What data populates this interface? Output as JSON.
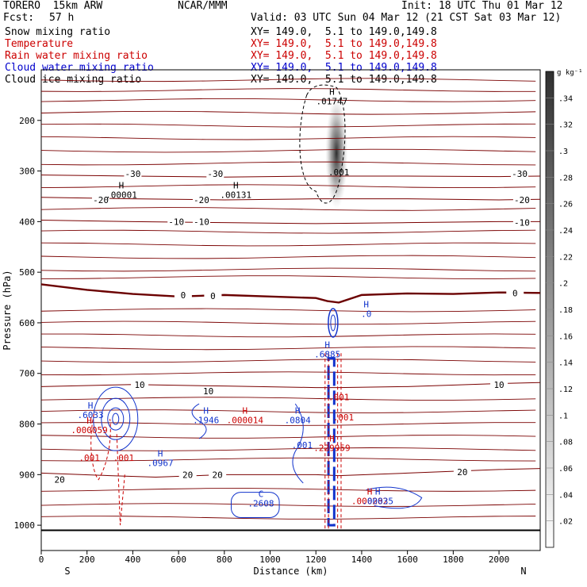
{
  "header": {
    "model": "TORERO  15km ARW",
    "org": "NCAR/MMM",
    "init": "Init: 18 UTC Thu 01 Mar 12",
    "fcst_label": "Fcst:",
    "fcst_value": "57 h",
    "valid": "Valid: 03 UTC Sun 04 Mar 12 (21 CST Sat 03 Mar 12)",
    "fields": [
      {
        "name": "Snow mixing ratio",
        "xy": "XY= 149.0,  5.1 to 149.0,149.8",
        "color": "#000000"
      },
      {
        "name": "Temperature",
        "xy": "XY= 149.0,  5.1 to 149.0,149.8",
        "color": "#cc0000"
      },
      {
        "name": "Rain water mixing ratio",
        "xy": "XY= 149.0,  5.1 to 149.0,149.8",
        "color": "#cc0000"
      },
      {
        "name": "Cloud water mixing ratio",
        "xy": "XY= 149.0,  5.1 to 149.0,149.8",
        "color": "#0000cc"
      },
      {
        "name": "Cloud ice mixing ratio",
        "xy": "XY= 149.0,  5.1 to 149.0,149.8",
        "color": "#000000"
      }
    ]
  },
  "chart_data": {
    "type": "contour cross-section",
    "xlabel": "Distance (km)",
    "ylabel": "Pressure (hPa)",
    "xlim": [
      0,
      2180
    ],
    "ylim": [
      1050,
      100
    ],
    "x_ticks": [
      0,
      200,
      400,
      600,
      800,
      1000,
      1200,
      1400,
      1600,
      1800,
      2000
    ],
    "y_ticks": [
      200,
      300,
      400,
      500,
      600,
      700,
      800,
      900,
      1000
    ],
    "x_end_labels": {
      "left": "S",
      "right": "N"
    },
    "colorbar": {
      "unit": "g kg⁻¹",
      "ticks": [
        ".02",
        ".04",
        ".06",
        ".08",
        ".1",
        ".12",
        ".14",
        ".16",
        ".18",
        ".2",
        ".22",
        ".24",
        ".26",
        ".28",
        ".3",
        ".32",
        ".34"
      ]
    },
    "temperature_isotherms": [
      {
        "value": 0,
        "x": [
          0,
          200,
          400,
          600,
          800,
          1000,
          1200,
          1250,
          1300,
          1400,
          1600,
          1800,
          2000,
          2180
        ],
        "p": [
          524,
          535,
          543,
          548,
          545,
          548,
          551,
          557,
          560,
          545,
          542,
          543,
          540,
          541
        ],
        "bold": true
      },
      {
        "value": 10,
        "x": [
          0,
          400,
          800,
          1200,
          1300,
          1600,
          2000,
          2180
        ],
        "p": [
          726,
          722,
          725,
          728,
          728,
          726,
          720,
          718
        ],
        "bold": false
      },
      {
        "value": 20,
        "x": [
          0,
          300,
          500,
          800,
          1000,
          1200,
          1300,
          1600,
          2000,
          2180
        ],
        "p": [
          897,
          902,
          905,
          900,
          900,
          900,
          902,
          897,
          890,
          888
        ],
        "bold": false
      },
      {
        "value": -10,
        "x": [
          0,
          400,
          800,
          1200,
          1600,
          2000,
          2180
        ],
        "p": [
          397,
          400,
          402,
          404,
          402,
          400,
          400
        ],
        "bold": false
      },
      {
        "value": -20,
        "x": [
          0,
          400,
          800,
          1200,
          1600,
          2000,
          2180
        ],
        "p": [
          352,
          355,
          357,
          355,
          355,
          357,
          356
        ],
        "bold": false
      },
      {
        "value": -30,
        "x": [
          0,
          400,
          800,
          1200,
          1600,
          2000,
          2180
        ],
        "p": [
          308,
          310,
          312,
          310,
          310,
          311,
          310
        ],
        "bold": false
      }
    ],
    "temperature_labels": [
      {
        "text": "-30",
        "x": 400,
        "p": 305
      },
      {
        "text": "-30",
        "x": 760,
        "p": 305
      },
      {
        "text": "-30",
        "x": 2090,
        "p": 305
      },
      {
        "text": "-20",
        "x": 260,
        "p": 357
      },
      {
        "text": "-20",
        "x": 700,
        "p": 357
      },
      {
        "text": "-20",
        "x": 2100,
        "p": 357
      },
      {
        "text": "-10",
        "x": 590,
        "p": 400
      },
      {
        "text": "-10",
        "x": 700,
        "p": 400
      },
      {
        "text": "-10",
        "x": 2100,
        "p": 402
      },
      {
        "text": "0",
        "x": 620,
        "p": 545
      },
      {
        "text": "0",
        "x": 750,
        "p": 547
      },
      {
        "text": "0",
        "x": 2070,
        "p": 541
      },
      {
        "text": "10",
        "x": 430,
        "p": 722
      },
      {
        "text": "10",
        "x": 730,
        "p": 735
      },
      {
        "text": "10",
        "x": 2000,
        "p": 722
      },
      {
        "text": "20",
        "x": 80,
        "p": 910
      },
      {
        "text": "20",
        "x": 640,
        "p": 900
      },
      {
        "text": "20",
        "x": 770,
        "p": 900
      },
      {
        "text": "20",
        "x": 1840,
        "p": 895
      }
    ],
    "extrema": [
      {
        "kind": "H",
        "value": ".00001",
        "x": 350,
        "p": 350,
        "field": "snow"
      },
      {
        "kind": "H",
        "value": ".00131",
        "x": 850,
        "p": 350,
        "field": "snow"
      },
      {
        "kind": "H",
        "value": ".01747",
        "x": 1270,
        "p": 165,
        "field": "ice"
      },
      {
        "kind": "",
        "value": ".001",
        "x": 1300,
        "p": 305,
        "field": "ice"
      },
      {
        "kind": "H",
        "value": ".0",
        "x": 1420,
        "p": 585,
        "field": "cloud"
      },
      {
        "kind": "H",
        "value": ".6885",
        "x": 1250,
        "p": 665,
        "field": "cloud"
      },
      {
        "kind": "",
        "value": ".001",
        "x": 1300,
        "p": 750,
        "field": "rain"
      },
      {
        "kind": "",
        "value": ".001",
        "x": 1320,
        "p": 790,
        "field": "rain"
      },
      {
        "kind": "H",
        "value": ".6033",
        "x": 215,
        "p": 785,
        "field": "cloud"
      },
      {
        "kind": "H",
        "value": ".000059",
        "x": 210,
        "p": 815,
        "field": "rain"
      },
      {
        "kind": "",
        "value": ".001",
        "x": 210,
        "p": 870,
        "field": "rain"
      },
      {
        "kind": "",
        "value": ".001",
        "x": 360,
        "p": 870,
        "field": "rain"
      },
      {
        "kind": "H",
        "value": ".0967",
        "x": 520,
        "p": 880,
        "field": "cloud"
      },
      {
        "kind": "H",
        "value": ".1946",
        "x": 720,
        "p": 795,
        "field": "cloud"
      },
      {
        "kind": "H",
        "value": ".000014",
        "x": 890,
        "p": 795,
        "field": "rain"
      },
      {
        "kind": "H",
        "value": ".0804",
        "x": 1120,
        "p": 795,
        "field": "cloud"
      },
      {
        "kind": "",
        "value": ".001",
        "x": 1140,
        "p": 845,
        "field": "cloud"
      },
      {
        "kind": "H",
        "value": ".229959",
        "x": 1270,
        "p": 850,
        "field": "rain"
      },
      {
        "kind": "C",
        "value": ".2608",
        "x": 960,
        "p": 960,
        "field": "cloud"
      },
      {
        "kind": "H",
        "value": ".000282",
        "x": 1435,
        "p": 955,
        "field": "rain"
      },
      {
        "kind": "H",
        "value": ".00035",
        "x": 1470,
        "p": 955,
        "field": "cloud"
      }
    ]
  }
}
